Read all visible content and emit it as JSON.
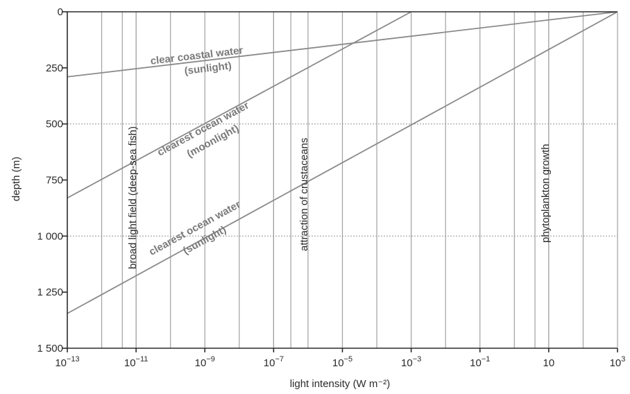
{
  "chart_data": {
    "type": "line",
    "x_scale": "log10",
    "xlim": [
      -13,
      3
    ],
    "ylim": [
      0,
      1500
    ],
    "y_inverted": true,
    "xlabel": "light intensity (W m⁻²)",
    "ylabel": "depth (m)",
    "y_ticks": [
      {
        "value": 0,
        "label": "0"
      },
      {
        "value": 250,
        "label": "250"
      },
      {
        "value": 500,
        "label": "500"
      },
      {
        "value": 750,
        "label": "750"
      },
      {
        "value": 1000,
        "label": "1 000"
      },
      {
        "value": 1250,
        "label": "1 250"
      },
      {
        "value": 1500,
        "label": "1 500"
      }
    ],
    "x_ticks": [
      {
        "value": -13,
        "base": "10",
        "exp": "−13"
      },
      {
        "value": -11,
        "base": "10",
        "exp": "−11"
      },
      {
        "value": -9,
        "base": "10",
        "exp": "−9"
      },
      {
        "value": -7,
        "base": "10",
        "exp": "−7"
      },
      {
        "value": -5,
        "base": "10",
        "exp": "−5"
      },
      {
        "value": -3,
        "base": "10",
        "exp": "−3"
      },
      {
        "value": -1,
        "base": "10",
        "exp": "−1"
      },
      {
        "value": 1,
        "base": "10",
        "exp": ""
      },
      {
        "value": 3,
        "base": "10",
        "exp": "3"
      }
    ],
    "grid": {
      "vertical_at_decades": true,
      "horizontal_dotted_at": [
        500,
        1000
      ]
    },
    "thresholds": [
      {
        "name": "broad light field (deep-sea fish)",
        "x_band": [
          -11.4,
          -11.0
        ]
      },
      {
        "name": "attraction of crustaceans",
        "x_band": [
          -7.0,
          -6.5
        ]
      },
      {
        "name": "phytoplankton growth",
        "x_band": [
          0.6,
          1.0
        ]
      }
    ],
    "series": [
      {
        "name_line1": "clear coastal water",
        "name_line2": "(sunlight)",
        "x": [
          -13,
          3
        ],
        "y": [
          290,
          0
        ]
      },
      {
        "name_line1": "clearest ocean water",
        "name_line2": "(moonlight)",
        "x": [
          -13,
          -3
        ],
        "y": [
          830,
          0
        ]
      },
      {
        "name_line1": "clearest ocean water",
        "name_line2": "(sunlight)",
        "x": [
          -13,
          3
        ],
        "y": [
          1345,
          0
        ]
      }
    ],
    "colors": {
      "axis": "#2a2a2a",
      "grid": "#a0a0a0",
      "series": "#8a8a8a",
      "series_text": "#7a7a7a"
    }
  }
}
